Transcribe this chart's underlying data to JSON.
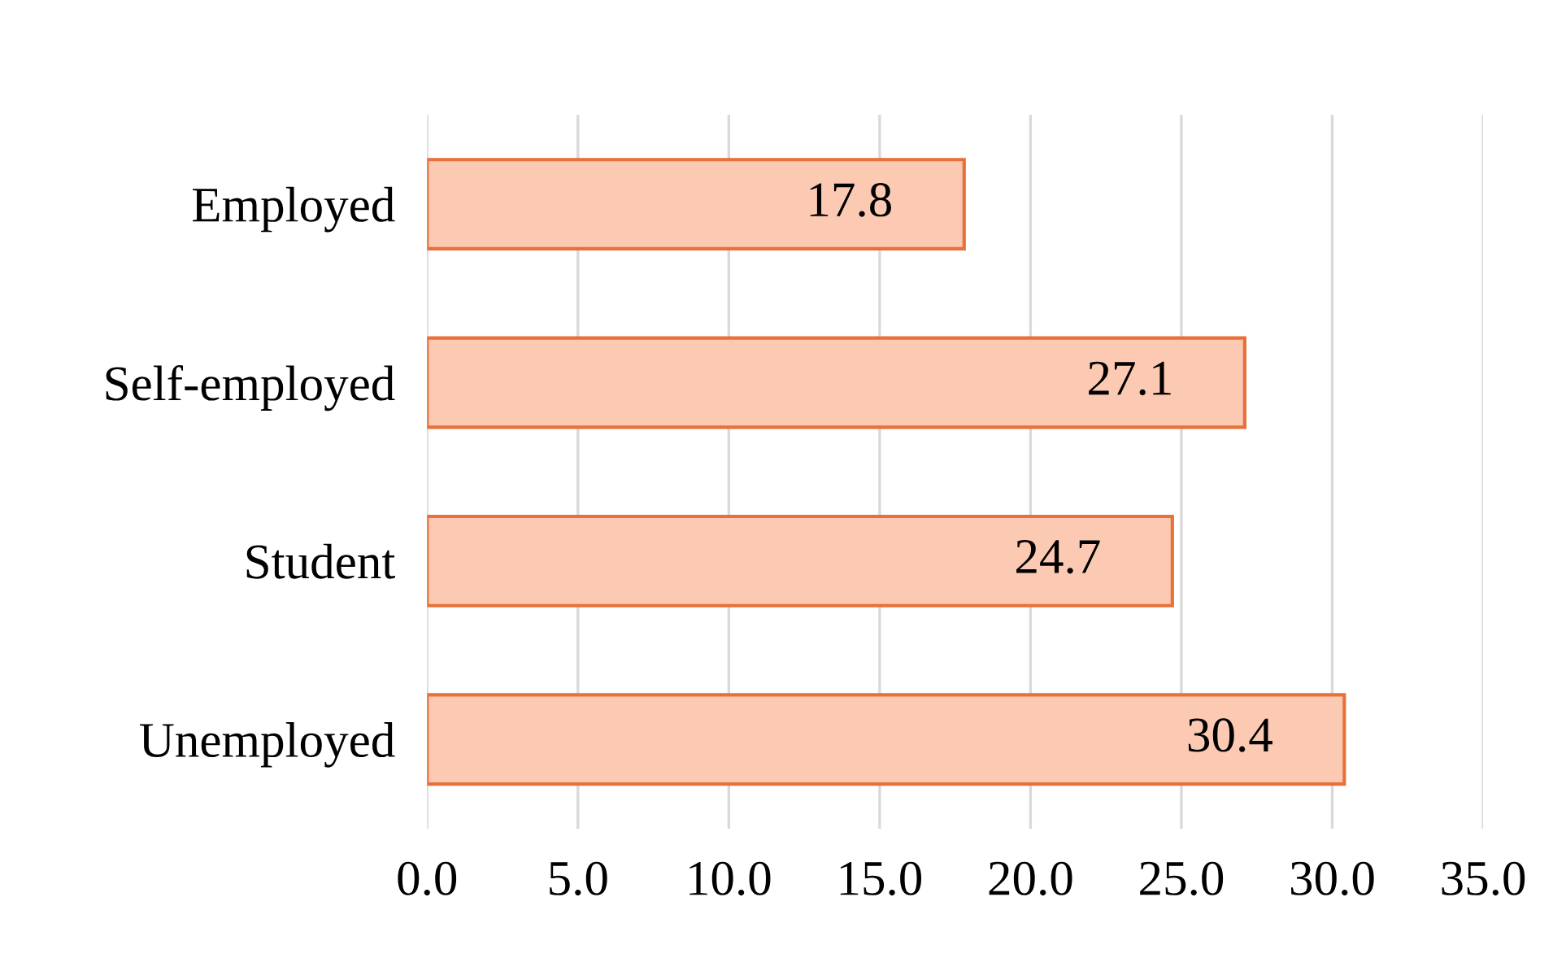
{
  "chart_data": {
    "type": "bar",
    "orientation": "horizontal",
    "categories": [
      "Employed",
      "Self-employed",
      "Student",
      "Unemployed"
    ],
    "values": [
      17.8,
      27.1,
      24.7,
      30.4
    ],
    "color": "#fcc9b3",
    "xlim": [
      0,
      35
    ],
    "xticks": [
      {
        "value": 0,
        "label": "0.0"
      },
      {
        "value": 5,
        "label": "5.0"
      },
      {
        "value": 10,
        "label": "10.0"
      },
      {
        "value": 15,
        "label": "15.0"
      },
      {
        "value": 20,
        "label": "20.0"
      },
      {
        "value": 25,
        "label": "25.0"
      },
      {
        "value": 30,
        "label": "30.0"
      },
      {
        "value": 35,
        "label": "35.0"
      }
    ],
    "grid": "x",
    "data_labels": true
  }
}
